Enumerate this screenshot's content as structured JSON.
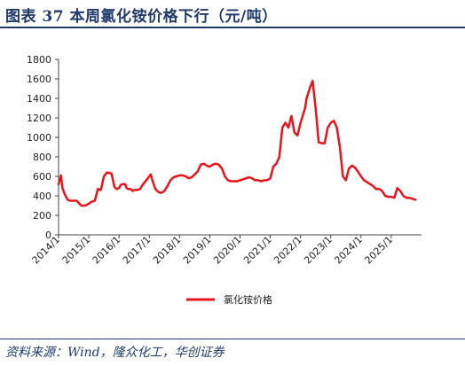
{
  "header": {
    "title": "图表 37    本周氯化铵价格下行（元/吨）"
  },
  "footer": {
    "source": "资料来源：Wind，隆众化工，华创证券"
  },
  "chart_data": {
    "type": "line",
    "title": "",
    "xlabel": "",
    "ylabel": "",
    "ylim": [
      0,
      1800
    ],
    "y_ticks": [
      "0",
      "200",
      "400",
      "600",
      "800",
      "1000",
      "1200",
      "1400",
      "1600",
      "1800"
    ],
    "x_ticks": [
      "2014/1",
      "2015/1",
      "2016/1",
      "2017/1",
      "2018/1",
      "2019/1",
      "2020/1",
      "2021/1",
      "2022/1",
      "2023/1",
      "2024/1",
      "2025/1"
    ],
    "xlim": [
      2014.0,
      2026.0
    ],
    "grid": false,
    "legend_position": "bottom",
    "series": [
      {
        "name": "氯化铵价格",
        "color": "#e8141c",
        "x": [
          2014.0,
          2014.08,
          2014.13,
          2014.2,
          2014.3,
          2014.38,
          2014.46,
          2014.6,
          2014.75,
          2014.88,
          2015.0,
          2015.1,
          2015.2,
          2015.3,
          2015.4,
          2015.5,
          2015.6,
          2015.75,
          2015.85,
          2015.92,
          2016.0,
          2016.05,
          2016.12,
          2016.2,
          2016.25,
          2016.3,
          2016.38,
          2016.45,
          2016.5,
          2016.6,
          2016.7,
          2016.75,
          2016.8,
          2016.9,
          2017.0,
          2017.05,
          2017.1,
          2017.2,
          2017.3,
          2017.38,
          2017.45,
          2017.5,
          2017.6,
          2017.7,
          2017.8,
          2017.9,
          2018.0,
          2018.1,
          2018.2,
          2018.3,
          2018.4,
          2018.5,
          2018.6,
          2018.7,
          2018.8,
          2018.9,
          2019.0,
          2019.1,
          2019.2,
          2019.3,
          2019.4,
          2019.5,
          2019.6,
          2019.7,
          2019.8,
          2019.9,
          2020.0,
          2020.1,
          2020.2,
          2020.3,
          2020.4,
          2020.5,
          2020.6,
          2020.7,
          2020.8,
          2020.9,
          2021.0,
          2021.1,
          2021.2,
          2021.3,
          2021.4,
          2021.5,
          2021.6,
          2021.7,
          2021.8,
          2021.9,
          2022.0,
          2022.05,
          2022.1,
          2022.15,
          2022.2,
          2022.3,
          2022.4,
          2022.5,
          2022.6,
          2022.7,
          2022.8,
          2022.9,
          2023.0,
          2023.1,
          2023.2,
          2023.3,
          2023.4,
          2023.5,
          2023.6,
          2023.7,
          2023.8,
          2023.9,
          2024.0,
          2024.1,
          2024.2,
          2024.3,
          2024.4,
          2024.5,
          2024.6,
          2024.7,
          2024.8,
          2024.9,
          2025.0,
          2025.1,
          2025.2,
          2025.3,
          2025.4,
          2025.5,
          2025.6,
          2025.7,
          2025.8
        ],
        "values": [
          520,
          610,
          480,
          420,
          360,
          350,
          350,
          350,
          300,
          300,
          320,
          340,
          350,
          470,
          460,
          600,
          640,
          630,
          490,
          470,
          480,
          510,
          520,
          520,
          480,
          470,
          470,
          450,
          460,
          460,
          470,
          500,
          520,
          560,
          600,
          620,
          560,
          470,
          440,
          430,
          440,
          450,
          500,
          560,
          590,
          600,
          610,
          610,
          600,
          580,
          590,
          620,
          650,
          720,
          730,
          710,
          700,
          720,
          730,
          720,
          680,
          600,
          560,
          550,
          550,
          550,
          560,
          570,
          580,
          590,
          580,
          560,
          560,
          550,
          560,
          560,
          580,
          700,
          730,
          800,
          1100,
          1150,
          1100,
          1220,
          1050,
          1020,
          1150,
          1200,
          1250,
          1300,
          1400,
          1500,
          1580,
          1300,
          950,
          940,
          940,
          1100,
          1150,
          1170,
          1100,
          900,
          600,
          560,
          680,
          710,
          690,
          650,
          600,
          560,
          540,
          520,
          500,
          470,
          470,
          450,
          400,
          390,
          390,
          380,
          480,
          450,
          400,
          380,
          380,
          370,
          360
        ]
      }
    ]
  }
}
